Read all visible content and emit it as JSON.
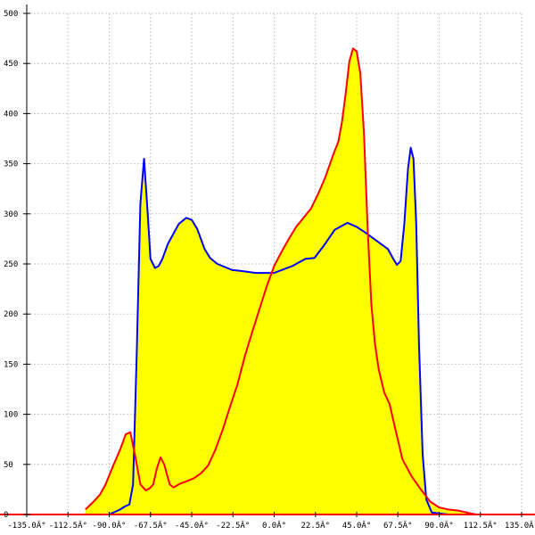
{
  "chart_data": {
    "type": "area",
    "title": "",
    "xlabel": "",
    "ylabel": "",
    "xlim": [
      -135,
      135
    ],
    "ylim": [
      0,
      500
    ],
    "grid": true,
    "x_tick_values": [
      -135,
      -112.5,
      -90,
      -67.5,
      -45,
      -22.5,
      0,
      22.5,
      45,
      67.5,
      90,
      112.5,
      135
    ],
    "x_tick_labels": [
      "-135.0Â°",
      "-112.5Â°",
      "-90.0Â°",
      "-67.5Â°",
      "-45.0Â°",
      "-22.5Â°",
      "0.0Â°",
      "22.5Â°",
      "45.0Â°",
      "67.5Â°",
      "90.0Â°",
      "112.5Â°",
      "135.0Â°"
    ],
    "y_tick_values": [
      0,
      50,
      100,
      150,
      200,
      250,
      300,
      350,
      400,
      450,
      500
    ],
    "y_tick_labels": [
      "0",
      "50",
      "100",
      "150",
      "200",
      "250",
      "300",
      "350",
      "400",
      "450",
      "500"
    ],
    "colors": {
      "fill": "#ffff00",
      "series_a": "#0000ff",
      "series_b": "#ff0000",
      "grid": "#c8c8c8",
      "axis": "#000000",
      "baseline": "#ff0000"
    },
    "series": [
      {
        "key": "blue",
        "x": [
          -90,
          -84,
          -81.5,
          -79,
          -77,
          -75,
          -73,
          -71,
          -69,
          -67.5,
          -65,
          -63,
          -61,
          -58,
          -55,
          -52,
          -48,
          -45,
          -42,
          -38,
          -35,
          -31,
          -27,
          -23,
          -18,
          -10,
          0,
          10,
          17,
          22,
          27,
          33,
          40,
          45,
          50,
          56,
          62,
          65,
          67,
          69,
          71,
          73,
          74.5,
          76,
          77.5,
          79,
          81,
          83,
          86,
          95,
          110,
          135
        ],
        "y": [
          0,
          5,
          8,
          10,
          30,
          160,
          310,
          355,
          300,
          255,
          246,
          248,
          255,
          270,
          280,
          290,
          296,
          294,
          285,
          265,
          256,
          250,
          247,
          244,
          243,
          241,
          241,
          248,
          255,
          256,
          268,
          284,
          291,
          287,
          281,
          273,
          265,
          255,
          249,
          253,
          290,
          345,
          366,
          355,
          290,
          170,
          60,
          15,
          2,
          0,
          0,
          0
        ]
      },
      {
        "key": "red",
        "x": [
          -103,
          -99,
          -97,
          -95,
          -92,
          -88,
          -84,
          -81,
          -78.5,
          -76,
          -73,
          -70,
          -68,
          -66,
          -64,
          -62,
          -60,
          -57,
          -55,
          -53,
          -51,
          -48,
          -44,
          -40,
          -36,
          -32,
          -28,
          -24,
          -20,
          -16,
          -12,
          -8,
          -4,
          0,
          4,
          8,
          12,
          16,
          20,
          24,
          28,
          32,
          35,
          37,
          39,
          41,
          43,
          45,
          47,
          49,
          51,
          53,
          55,
          57,
          60,
          63,
          66,
          70,
          75,
          80,
          85,
          90,
          95,
          100,
          105,
          110,
          135
        ],
        "y": [
          5,
          12,
          16,
          20,
          30,
          48,
          65,
          80,
          82,
          60,
          30,
          24,
          26,
          30,
          46,
          57,
          50,
          30,
          27,
          29,
          31,
          33,
          36,
          41,
          49,
          65,
          85,
          108,
          130,
          158,
          182,
          205,
          228,
          248,
          262,
          275,
          287,
          296,
          305,
          320,
          337,
          358,
          372,
          392,
          420,
          452,
          465,
          462,
          440,
          380,
          285,
          210,
          170,
          145,
          122,
          110,
          86,
          55,
          38,
          25,
          13,
          7,
          5,
          4,
          2,
          0,
          0
        ]
      }
    ]
  }
}
